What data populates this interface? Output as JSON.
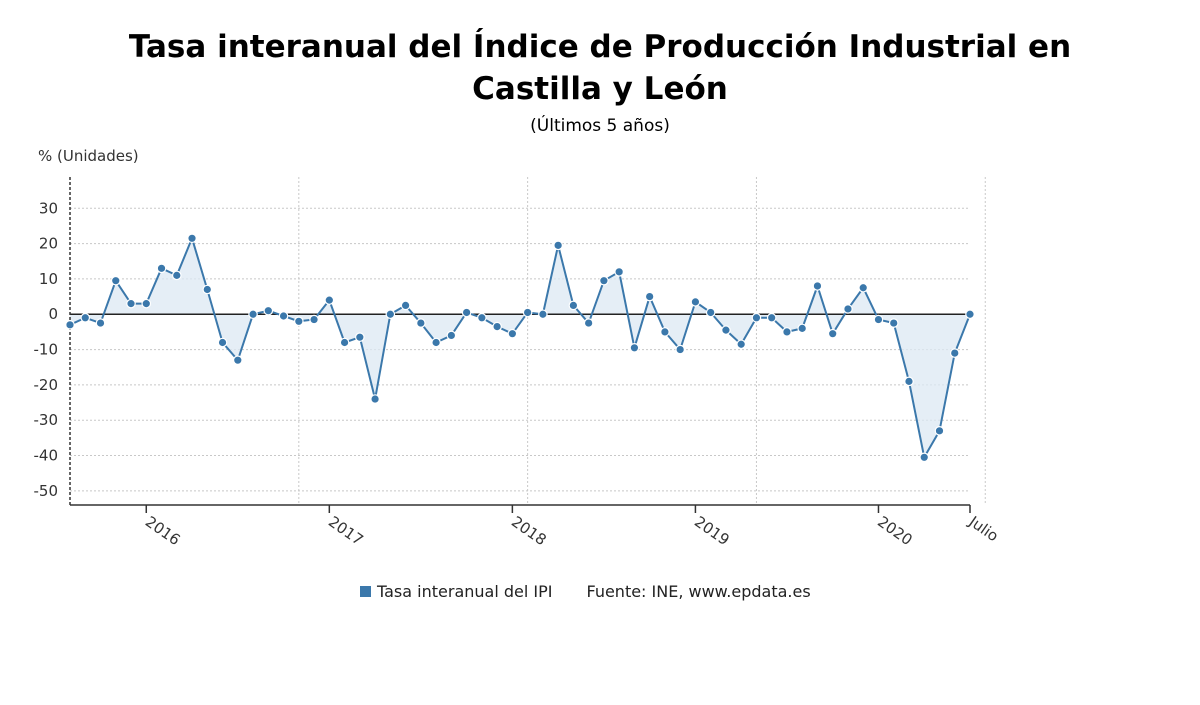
{
  "header": {
    "title": "Tasa interanual del Índice de Producción Industrial en Castilla y León",
    "subtitle": "(Últimos 5 años)"
  },
  "legend": {
    "series_label": "Tasa interanual del IPI",
    "source": "Fuente: INE, www.epdata.es"
  },
  "colors": {
    "line": "#3b78ab",
    "fill": "#dce8f3",
    "grid": "#c8c8c8",
    "zero_line": "#222222"
  },
  "chart_data": {
    "type": "line",
    "ylabel": "% (Unidades)",
    "ylim": [
      -54,
      38
    ],
    "yticks": [
      30,
      20,
      10,
      0,
      -10,
      -20,
      -30,
      -40,
      -50
    ],
    "grid": true,
    "x_tick_labels": [
      {
        "label": "2016",
        "index": 5
      },
      {
        "label": "2017",
        "index": 17
      },
      {
        "label": "2018",
        "index": 29
      },
      {
        "label": "2019",
        "index": 41
      },
      {
        "label": "2020",
        "index": 53
      },
      {
        "label": "Julio",
        "index": 59
      }
    ],
    "x_band_lines": [
      15,
      30,
      45,
      60
    ],
    "series": [
      {
        "name": "Tasa interanual del IPI",
        "values": [
          -3,
          -1,
          -2.5,
          9.5,
          3,
          3,
          13,
          11,
          21.5,
          7,
          -8,
          -13,
          0,
          1,
          -0.5,
          -2,
          -1.5,
          4,
          -8,
          -6.5,
          -24,
          0,
          2.5,
          -2.5,
          -8,
          -6,
          0.5,
          -1,
          -3.5,
          -5.5,
          0.5,
          0,
          19.5,
          2.5,
          -2.5,
          9.5,
          12,
          -9.5,
          5,
          -5,
          -10,
          3.5,
          0.5,
          -4.5,
          -8.5,
          -1,
          -1,
          -5,
          -4,
          8,
          -5.5,
          1.5,
          7.5,
          -1.5,
          -2.5,
          -19,
          -40.5,
          -33,
          -11,
          0
        ]
      }
    ]
  }
}
